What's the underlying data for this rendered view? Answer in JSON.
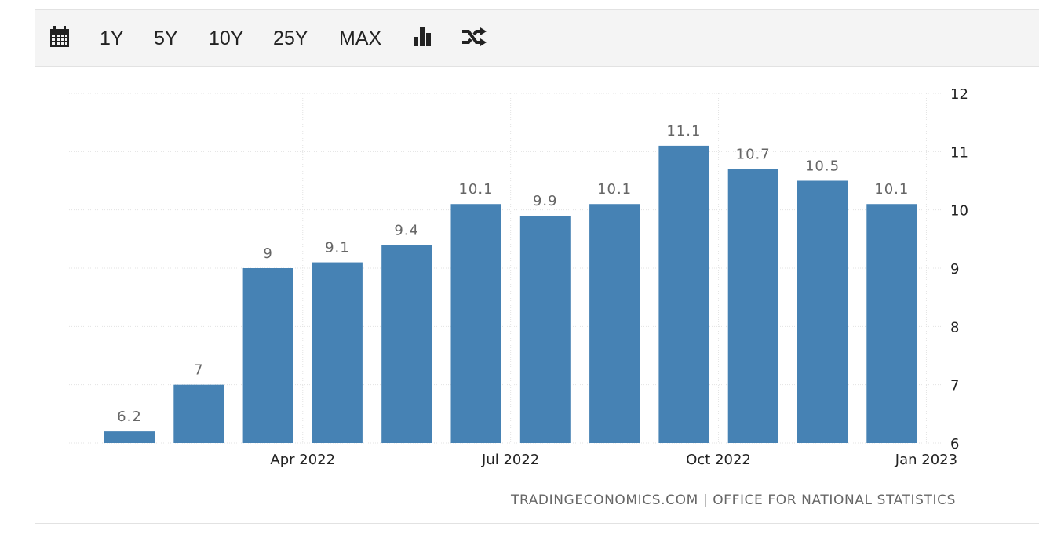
{
  "toolbar": {
    "calendar_icon": "calendar-icon",
    "ranges": [
      "1Y",
      "5Y",
      "10Y",
      "25Y",
      "MAX"
    ],
    "bar_chart_icon": "bar-chart-icon",
    "compare_icon": "shuffle-icon"
  },
  "colors": {
    "bar": "#4682b4",
    "label": "#666666",
    "grid": "#e3e3e3",
    "axis_text": "#222222"
  },
  "chart_data": {
    "type": "bar",
    "categories": [
      "2022-01",
      "2022-02",
      "2022-03",
      "2022-04",
      "2022-05",
      "2022-06",
      "2022-07",
      "2022-08",
      "2022-09",
      "2022-10",
      "2022-11",
      "2022-12"
    ],
    "values": [
      6.2,
      7,
      9,
      9.1,
      9.4,
      10.1,
      9.9,
      10.1,
      11.1,
      10.7,
      10.5,
      10.1
    ],
    "value_labels": [
      "6.2",
      "7",
      "9",
      "9.1",
      "9.4",
      "10.1",
      "9.9",
      "10.1",
      "11.1",
      "10.7",
      "10.5",
      "10.1"
    ],
    "x_ticks": [
      {
        "label": "Apr 2022",
        "after_index": 2
      },
      {
        "label": "Jul 2022",
        "after_index": 5
      },
      {
        "label": "Oct 2022",
        "after_index": 8
      },
      {
        "label": "Jan 2023",
        "after_index": 11
      }
    ],
    "y_ticks": [
      6,
      7,
      8,
      9,
      10,
      11,
      12
    ],
    "ylim": [
      6,
      12
    ],
    "y_axis_side": "right",
    "grid": true,
    "source": "TRADINGECONOMICS.COM | OFFICE FOR NATIONAL STATISTICS"
  }
}
